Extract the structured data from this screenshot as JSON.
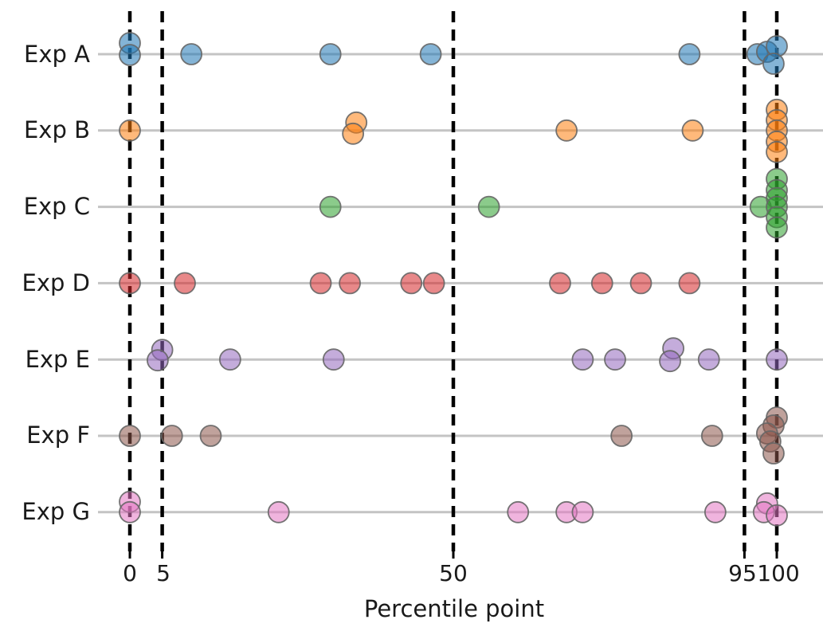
{
  "chart_data": {
    "type": "scatter",
    "variant": "categorical-strip-plot",
    "title": "",
    "xlabel": "Percentile point",
    "ylabel": "",
    "categories": [
      "Exp A",
      "Exp B",
      "Exp C",
      "Exp D",
      "Exp E",
      "Exp F",
      "Exp G"
    ],
    "x_ticks": [
      0,
      5,
      50,
      95,
      100
    ],
    "x_tick_labels": [
      "0",
      "5",
      "50",
      "95",
      "100"
    ],
    "reference_lines_x": [
      0,
      5,
      50,
      95,
      100
    ],
    "xlim": [
      -5,
      107
    ],
    "grid": "category-baselines",
    "legend": "none",
    "marker": {
      "edge_color": "#666666",
      "fill_opacity": 0.55
    },
    "colors": {
      "background": "#ffffff",
      "baseline": "#c4c4c4",
      "reference_line": "#000000",
      "text": "#1a1a1a"
    },
    "series": [
      {
        "name": "Exp A",
        "color": "#1f77b4",
        "points": [
          {
            "x": 0,
            "dy": -14
          },
          {
            "x": 0,
            "dy": 1
          },
          {
            "x": 9.5,
            "dy": 0
          },
          {
            "x": 31,
            "dy": 0
          },
          {
            "x": 46.5,
            "dy": 0
          },
          {
            "x": 86.5,
            "dy": 0
          },
          {
            "x": 97,
            "dy": 0
          },
          {
            "x": 98.5,
            "dy": -3
          },
          {
            "x": 100,
            "dy": -10
          },
          {
            "x": 99.5,
            "dy": 12
          }
        ]
      },
      {
        "name": "Exp B",
        "color": "#ff7f0e",
        "points": [
          {
            "x": 0,
            "dy": 0
          },
          {
            "x": 35,
            "dy": -10
          },
          {
            "x": 34.5,
            "dy": 4
          },
          {
            "x": 67.5,
            "dy": 0
          },
          {
            "x": 87,
            "dy": 0
          },
          {
            "x": 100,
            "dy": -26
          },
          {
            "x": 100,
            "dy": -13
          },
          {
            "x": 100,
            "dy": 0
          },
          {
            "x": 100,
            "dy": 14
          },
          {
            "x": 100,
            "dy": 27
          }
        ]
      },
      {
        "name": "Exp C",
        "color": "#2ca02c",
        "points": [
          {
            "x": 31,
            "dy": 0
          },
          {
            "x": 55.5,
            "dy": 0
          },
          {
            "x": 97.5,
            "dy": 0
          },
          {
            "x": 100,
            "dy": -35
          },
          {
            "x": 100,
            "dy": -21
          },
          {
            "x": 100,
            "dy": -11
          },
          {
            "x": 100,
            "dy": 0
          },
          {
            "x": 100,
            "dy": 13
          },
          {
            "x": 100,
            "dy": 26
          }
        ]
      },
      {
        "name": "Exp D",
        "color": "#d62728",
        "points": [
          {
            "x": 0,
            "dy": 0
          },
          {
            "x": 8.5,
            "dy": 0
          },
          {
            "x": 29.5,
            "dy": 0
          },
          {
            "x": 34,
            "dy": 0
          },
          {
            "x": 43.5,
            "dy": 0
          },
          {
            "x": 47,
            "dy": 0
          },
          {
            "x": 66.5,
            "dy": 0
          },
          {
            "x": 73,
            "dy": 0
          },
          {
            "x": 79,
            "dy": 0
          },
          {
            "x": 86.5,
            "dy": 0
          }
        ]
      },
      {
        "name": "Exp E",
        "color": "#9467bd",
        "points": [
          {
            "x": 5,
            "dy": -12
          },
          {
            "x": 4.3,
            "dy": 1
          },
          {
            "x": 15.5,
            "dy": 0
          },
          {
            "x": 31.5,
            "dy": 0
          },
          {
            "x": 70,
            "dy": 0
          },
          {
            "x": 75,
            "dy": 0
          },
          {
            "x": 84,
            "dy": -14
          },
          {
            "x": 83.5,
            "dy": 2
          },
          {
            "x": 89.5,
            "dy": 0
          },
          {
            "x": 100,
            "dy": 0
          }
        ]
      },
      {
        "name": "Exp F",
        "color": "#8c564b",
        "points": [
          {
            "x": 0,
            "dy": 0
          },
          {
            "x": 6.5,
            "dy": 0
          },
          {
            "x": 12.5,
            "dy": 0
          },
          {
            "x": 76,
            "dy": 0
          },
          {
            "x": 90,
            "dy": 0
          },
          {
            "x": 100,
            "dy": -23
          },
          {
            "x": 99.5,
            "dy": -13
          },
          {
            "x": 98.5,
            "dy": -3
          },
          {
            "x": 99,
            "dy": 7
          },
          {
            "x": 99.5,
            "dy": 22
          }
        ]
      },
      {
        "name": "Exp G",
        "color": "#e377c2",
        "points": [
          {
            "x": 0,
            "dy": -13
          },
          {
            "x": 0,
            "dy": 0
          },
          {
            "x": 23,
            "dy": 0
          },
          {
            "x": 60,
            "dy": 0
          },
          {
            "x": 67.5,
            "dy": 0
          },
          {
            "x": 70,
            "dy": 0
          },
          {
            "x": 90.5,
            "dy": 0
          },
          {
            "x": 98.5,
            "dy": -11
          },
          {
            "x": 98,
            "dy": 0
          },
          {
            "x": 100,
            "dy": 4
          }
        ]
      }
    ]
  }
}
